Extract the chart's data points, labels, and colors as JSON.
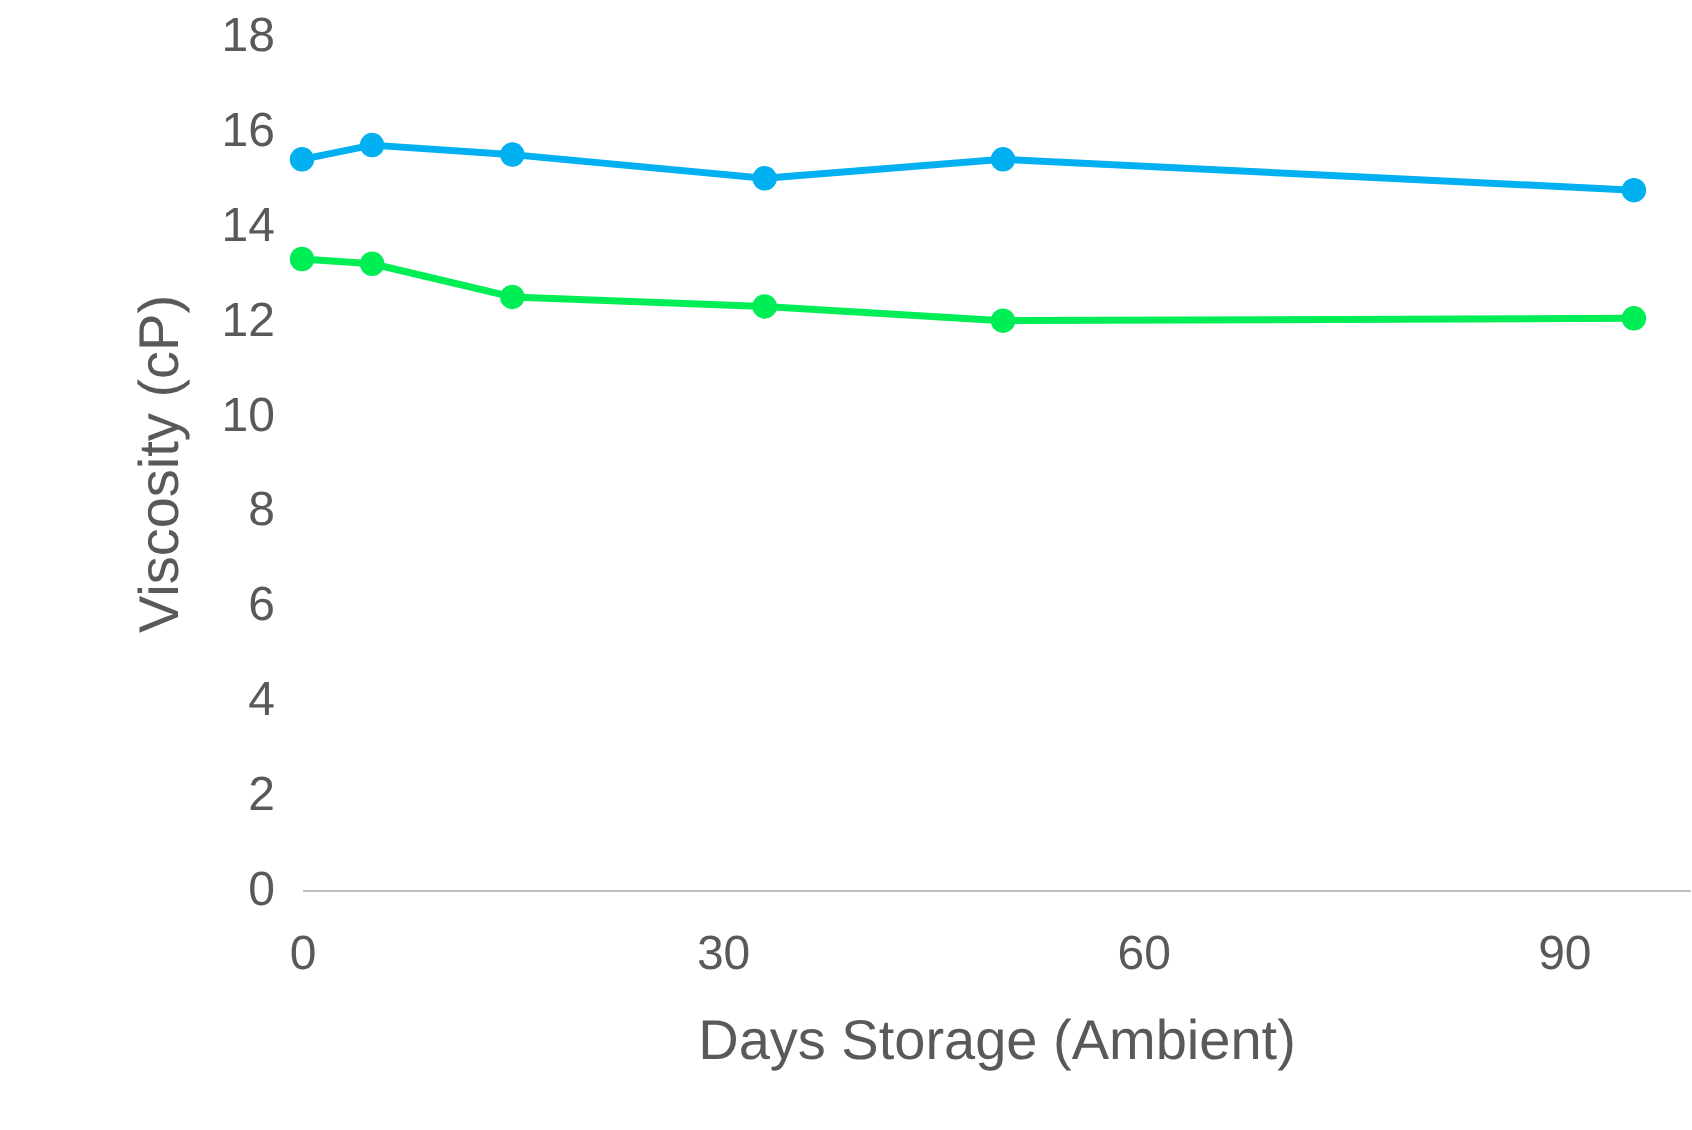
{
  "chart_data": {
    "type": "line",
    "xlabel": "Days Storage (Ambient)",
    "ylabel": "Viscosity (cP)",
    "xlim": [
      0,
      99
    ],
    "xticks": [
      0,
      30,
      60,
      90
    ],
    "ylim": [
      0,
      18
    ],
    "yticks": [
      0,
      2,
      4,
      6,
      8,
      10,
      12,
      14,
      16,
      18
    ],
    "grid": false,
    "marker": "circle",
    "line_style": "solid",
    "series": [
      {
        "color": "#00b0f0",
        "x": [
          0,
          5,
          15,
          33,
          50,
          95
        ],
        "values": [
          15.4,
          15.7,
          15.5,
          15.0,
          15.4,
          14.75
        ]
      },
      {
        "color": "#00ee55",
        "x": [
          0,
          5,
          15,
          33,
          50,
          95
        ],
        "values": [
          13.3,
          13.2,
          12.5,
          12.3,
          12.0,
          12.05
        ]
      }
    ]
  }
}
